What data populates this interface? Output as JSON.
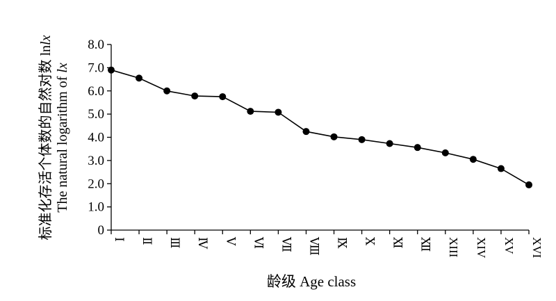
{
  "chart_data": {
    "type": "line",
    "categories": [
      "Ⅰ",
      "Ⅱ",
      "Ⅲ",
      "Ⅳ",
      "Ⅴ",
      "Ⅵ",
      "Ⅶ",
      "Ⅷ",
      "Ⅸ",
      "Ⅹ",
      "Ⅺ",
      "Ⅻ",
      "XIII",
      "XIV",
      "XV",
      "XVI"
    ],
    "series": [
      {
        "values": [
          6.9,
          6.55,
          6.0,
          5.78,
          5.75,
          5.12,
          5.08,
          4.25,
          4.02,
          3.9,
          3.73,
          3.56,
          3.33,
          3.05,
          2.65,
          1.95
        ]
      }
    ],
    "xlabel": "龄级 Age class",
    "ylabel_line1": "标准化存活个体数的自然对数 ln",
    "ylabel_line1_var": "lx",
    "ylabel_line2": "The natural logarithm of ",
    "ylabel_line2_var": "lx",
    "yticks": [
      "0",
      "1.0",
      "2.0",
      "3.0",
      "4.0",
      "5.0",
      "6.0",
      "7.0",
      "8.0"
    ],
    "ylim": [
      0,
      8
    ],
    "grid": false,
    "legend": "none",
    "colors": {
      "line": "#000000",
      "marker": "#000000"
    }
  }
}
